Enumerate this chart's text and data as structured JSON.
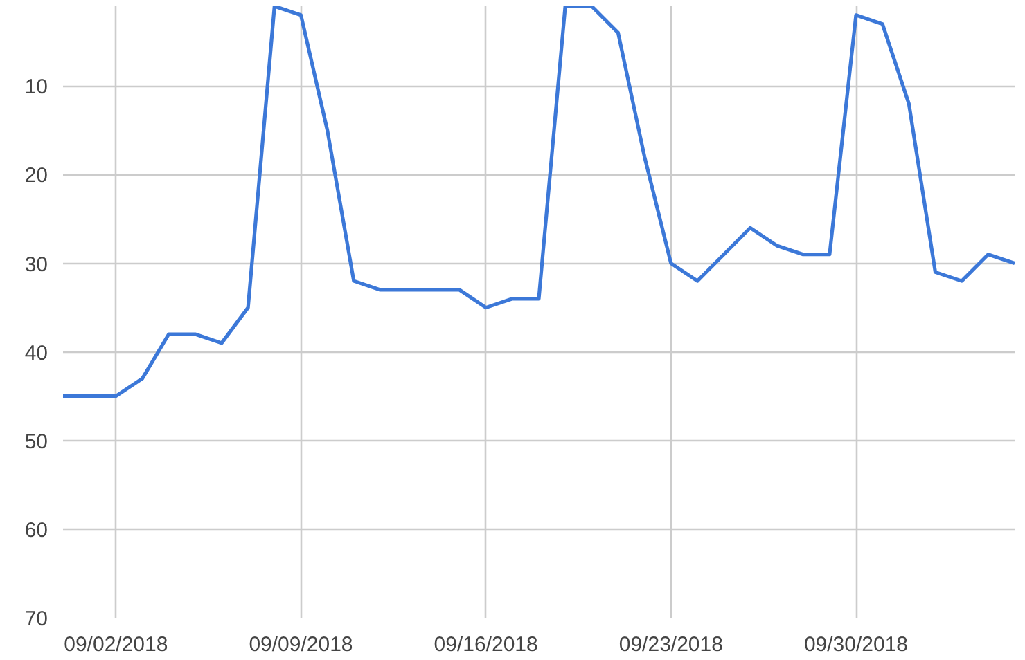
{
  "chart_data": {
    "type": "line",
    "x": [
      "2018-08-31",
      "2018-09-01",
      "2018-09-02",
      "2018-09-03",
      "2018-09-04",
      "2018-09-05",
      "2018-09-06",
      "2018-09-07",
      "2018-09-08",
      "2018-09-09",
      "2018-09-10",
      "2018-09-11",
      "2018-09-12",
      "2018-09-13",
      "2018-09-14",
      "2018-09-15",
      "2018-09-16",
      "2018-09-17",
      "2018-09-18",
      "2018-09-19",
      "2018-09-20",
      "2018-09-21",
      "2018-09-22",
      "2018-09-23",
      "2018-09-24",
      "2018-09-25",
      "2018-09-26",
      "2018-09-27",
      "2018-09-28",
      "2018-09-29",
      "2018-09-30",
      "2018-10-01",
      "2018-10-02",
      "2018-10-03",
      "2018-10-04",
      "2018-10-05",
      "2018-10-06"
    ],
    "series": [
      {
        "color": "#3c78d8",
        "values": [
          45,
          45,
          45,
          43,
          38,
          38,
          39,
          35,
          1,
          2,
          15,
          32,
          33,
          33,
          33,
          33,
          35,
          34,
          34,
          1,
          1,
          4,
          18,
          30,
          32,
          29,
          26,
          28,
          29,
          29,
          2,
          3,
          12,
          31,
          32,
          29,
          30
        ]
      }
    ],
    "xlim": [
      "2018-08-31",
      "2018-10-06"
    ],
    "xticks": [
      {
        "value": "2018-09-02",
        "label": "09/02/2018"
      },
      {
        "value": "2018-09-09",
        "label": "09/09/2018"
      },
      {
        "value": "2018-09-16",
        "label": "09/16/2018"
      },
      {
        "value": "2018-09-23",
        "label": "09/23/2018"
      },
      {
        "value": "2018-09-30",
        "label": "09/30/2018"
      }
    ],
    "ylim": [
      70,
      1
    ],
    "yticks": [
      10,
      20,
      30,
      40,
      50,
      60,
      70
    ],
    "grid": true,
    "marker": "none",
    "line_style": "solid"
  }
}
